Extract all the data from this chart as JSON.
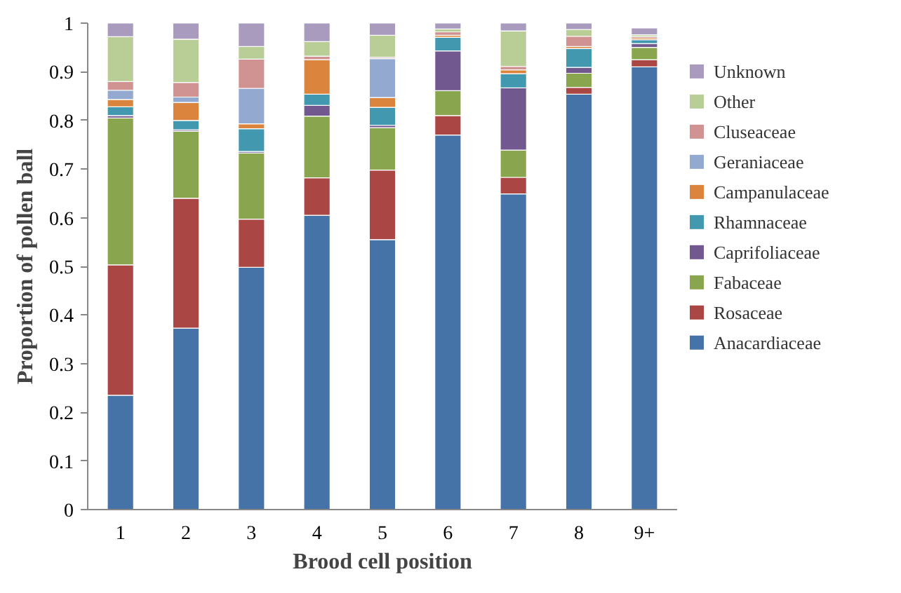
{
  "chart_data": {
    "type": "bar",
    "stacked": true,
    "xlabel": "Brood cell position",
    "ylabel": "Proportion of pollen ball",
    "categories": [
      "1",
      "2",
      "3",
      "4",
      "5",
      "6",
      "7",
      "8",
      "9+"
    ],
    "series": [
      {
        "name": "Anacardiaceae",
        "color": "#4572a7",
        "values": [
          0.235,
          0.373,
          0.498,
          0.605,
          0.555,
          0.77,
          0.649,
          0.854,
          0.91
        ]
      },
      {
        "name": "Rosaceae",
        "color": "#aa4643",
        "values": [
          0.268,
          0.267,
          0.099,
          0.077,
          0.143,
          0.04,
          0.034,
          0.014,
          0.015
        ]
      },
      {
        "name": "Fabaceae",
        "color": "#89a54e",
        "values": [
          0.302,
          0.138,
          0.136,
          0.127,
          0.087,
          0.051,
          0.056,
          0.029,
          0.025
        ]
      },
      {
        "name": "Caprifoliaceae",
        "color": "#71588f",
        "values": [
          0.005,
          0.003,
          0.003,
          0.022,
          0.005,
          0.082,
          0.128,
          0.012,
          0.008
        ]
      },
      {
        "name": "Rhamnaceae",
        "color": "#4198af",
        "values": [
          0.018,
          0.019,
          0.047,
          0.023,
          0.037,
          0.028,
          0.029,
          0.039,
          0.008
        ]
      },
      {
        "name": "Campanulaceae",
        "color": "#db843d",
        "values": [
          0.015,
          0.037,
          0.01,
          0.071,
          0.02,
          0.004,
          0.008,
          0.004,
          0.003
        ]
      },
      {
        "name": "Geraniaceae",
        "color": "#93a9cf",
        "values": [
          0.019,
          0.011,
          0.073,
          0,
          0.08,
          0,
          0,
          0,
          0
        ]
      },
      {
        "name": "Cluseaceae",
        "color": "#d19392",
        "values": [
          0.018,
          0.03,
          0.06,
          0.007,
          0.003,
          0.007,
          0.007,
          0.021,
          0.003
        ]
      },
      {
        "name": "Other",
        "color": "#b9cd96",
        "values": [
          0.092,
          0.089,
          0.026,
          0.03,
          0.045,
          0.006,
          0.073,
          0.014,
          0.004
        ]
      },
      {
        "name": "Unknown",
        "color": "#a99bbd",
        "values": [
          0.028,
          0.033,
          0.048,
          0.038,
          0.025,
          0.012,
          0.016,
          0.013,
          0.014
        ]
      }
    ],
    "ylim": [
      0,
      1
    ],
    "yticks": [
      0,
      0.1,
      0.2,
      0.3,
      0.4,
      0.5,
      0.6,
      0.7,
      0.8,
      0.9,
      1
    ],
    "grid": false,
    "legend": "right"
  }
}
